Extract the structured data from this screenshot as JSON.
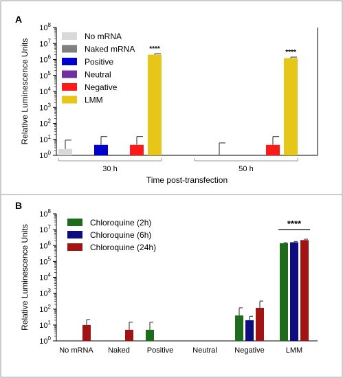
{
  "chart_data": [
    {
      "panel": "A",
      "type": "bar",
      "ylabel": "Relative Luminescence Units",
      "xlabel": "Time post-transfection",
      "yscale": "log",
      "ylim": [
        1,
        100000000
      ],
      "groups": [
        "30 h",
        "50 h"
      ],
      "series": [
        {
          "name": "No mRNA",
          "color": "#d9d9d9",
          "values": [
            2.5,
            1
          ],
          "err_upper": [
            9,
            1
          ]
        },
        {
          "name": "Naked mRNA",
          "color": "#808080",
          "values": [
            1,
            1
          ],
          "err_upper": [
            1,
            6
          ]
        },
        {
          "name": "Positive",
          "color": "#0000cc",
          "values": [
            4.5,
            1
          ],
          "err_upper": [
            15,
            1
          ]
        },
        {
          "name": "Neutral",
          "color": "#7030a0",
          "values": [
            1,
            1
          ],
          "err_upper": [
            1,
            1
          ]
        },
        {
          "name": "Negative",
          "color": "#ff1a1a",
          "values": [
            4.5,
            4.5
          ],
          "err_upper": [
            15,
            15
          ]
        },
        {
          "name": "LMM",
          "color": "#e6c619",
          "values": [
            2000000,
            1200000
          ],
          "err_upper": [
            2300000,
            1400000
          ]
        }
      ],
      "annotations": [
        "****",
        "****"
      ],
      "legend_position": "top-left"
    },
    {
      "panel": "B",
      "type": "bar",
      "ylabel": "Relative Luminescence Units",
      "yscale": "log",
      "ylim": [
        1,
        100000000
      ],
      "categories": [
        "No mRNA",
        "Naked",
        "Positive",
        "Neutral",
        "Negative",
        "LMM"
      ],
      "series": [
        {
          "name": "Chloroquine (2h)",
          "color": "#1e6b1e",
          "values": [
            1,
            1,
            5,
            1,
            40,
            1400000
          ],
          "err_upper": [
            1,
            1,
            15,
            1,
            120,
            1500000
          ]
        },
        {
          "name": "Chloroquine (6h)",
          "color": "#0d0d80",
          "values": [
            1,
            1,
            1,
            1,
            20,
            1600000
          ],
          "err_upper": [
            1,
            1,
            1,
            1,
            35,
            1800000
          ]
        },
        {
          "name": "Chloroquine (24h)",
          "color": "#a01414",
          "values": [
            10,
            5,
            1,
            1,
            120,
            2200000
          ],
          "err_upper": [
            22,
            15,
            1,
            1,
            320,
            2500000
          ]
        }
      ],
      "annotations": [
        "****"
      ],
      "legend_position": "top-left"
    }
  ]
}
